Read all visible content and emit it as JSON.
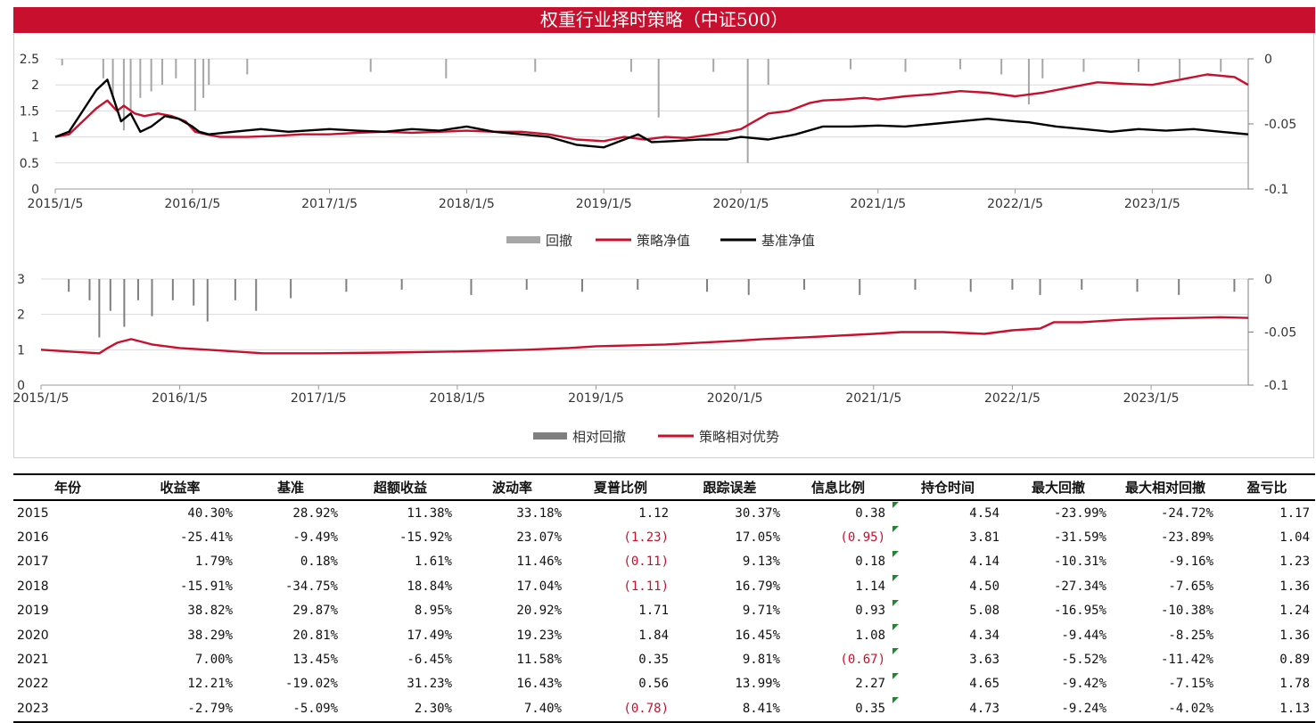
{
  "title": "权重行业择时策略（中证500）",
  "colors": {
    "strategy": "#c8102e",
    "benchmark": "#000000",
    "drawdown": "#a6a6a6",
    "relative_drawdown": "#7f7f7f",
    "title_bg": "#c8102e"
  },
  "chart_data": [
    {
      "type": "line",
      "x_ticks": [
        "2015/1/5",
        "2016/1/5",
        "2017/1/5",
        "2018/1/5",
        "2019/1/5",
        "2020/1/5",
        "2021/1/5",
        "2022/1/5",
        "2023/1/5"
      ],
      "y_left": {
        "min": 0,
        "max": 2.5,
        "ticks": [
          "0",
          "0.5",
          "1",
          "1.5",
          "2",
          "2.5"
        ]
      },
      "y_right": {
        "min": -0.1,
        "max": 0,
        "ticks": [
          "0",
          "-0.05",
          "-0.1"
        ]
      },
      "grid": true,
      "legend_position": "bottom",
      "series": [
        {
          "name": "回撤",
          "kind": "bar-down",
          "axis": "right",
          "x": [
            2015.05,
            2015.35,
            2015.42,
            2015.5,
            2015.55,
            2015.62,
            2015.7,
            2015.78,
            2015.88,
            2016.02,
            2016.08,
            2016.12,
            2016.4,
            2017.3,
            2017.85,
            2018.5,
            2019.2,
            2019.4,
            2019.8,
            2020.05,
            2020.2,
            2020.8,
            2021.2,
            2021.6,
            2021.9,
            2022.1,
            2022.2,
            2022.5,
            2022.9,
            2023.2,
            2023.5
          ],
          "values": [
            -0.005,
            -0.015,
            -0.03,
            -0.055,
            -0.04,
            -0.03,
            -0.025,
            -0.02,
            -0.015,
            -0.04,
            -0.03,
            -0.02,
            -0.012,
            -0.01,
            -0.015,
            -0.01,
            -0.01,
            -0.045,
            -0.01,
            -0.08,
            -0.02,
            -0.008,
            -0.01,
            -0.008,
            -0.012,
            -0.035,
            -0.015,
            -0.01,
            -0.01,
            -0.015,
            -0.01
          ]
        },
        {
          "name": "策略净值",
          "axis": "left",
          "x": [
            2015.0,
            2015.1,
            2015.2,
            2015.3,
            2015.38,
            2015.45,
            2015.5,
            2015.58,
            2015.65,
            2015.75,
            2015.85,
            2015.95,
            2016.02,
            2016.1,
            2016.2,
            2016.4,
            2016.6,
            2016.8,
            2017.0,
            2017.2,
            2017.4,
            2017.6,
            2017.8,
            2018.0,
            2018.2,
            2018.4,
            2018.6,
            2018.8,
            2019.0,
            2019.15,
            2019.3,
            2019.45,
            2019.6,
            2019.8,
            2020.0,
            2020.1,
            2020.2,
            2020.35,
            2020.5,
            2020.6,
            2020.75,
            2020.9,
            2021.0,
            2021.2,
            2021.4,
            2021.6,
            2021.8,
            2022.0,
            2022.2,
            2022.4,
            2022.6,
            2022.8,
            2023.0,
            2023.2,
            2023.4,
            2023.6,
            2023.7
          ],
          "values": [
            1.0,
            1.05,
            1.3,
            1.55,
            1.7,
            1.5,
            1.6,
            1.45,
            1.4,
            1.45,
            1.4,
            1.3,
            1.1,
            1.05,
            1.0,
            1.0,
            1.02,
            1.05,
            1.05,
            1.08,
            1.1,
            1.08,
            1.1,
            1.12,
            1.1,
            1.1,
            1.05,
            0.95,
            0.92,
            1.0,
            0.95,
            1.0,
            0.98,
            1.05,
            1.15,
            1.3,
            1.45,
            1.5,
            1.65,
            1.7,
            1.72,
            1.75,
            1.72,
            1.78,
            1.82,
            1.88,
            1.85,
            1.78,
            1.85,
            1.95,
            2.05,
            2.02,
            2.0,
            2.1,
            2.2,
            2.15,
            2.0
          ]
        },
        {
          "name": "基准净值",
          "axis": "left",
          "x": [
            2015.0,
            2015.1,
            2015.2,
            2015.3,
            2015.38,
            2015.43,
            2015.48,
            2015.55,
            2015.62,
            2015.7,
            2015.8,
            2015.9,
            2016.0,
            2016.05,
            2016.12,
            2016.3,
            2016.5,
            2016.7,
            2017.0,
            2017.2,
            2017.4,
            2017.6,
            2017.8,
            2018.0,
            2018.2,
            2018.4,
            2018.6,
            2018.8,
            2019.0,
            2019.15,
            2019.25,
            2019.35,
            2019.5,
            2019.7,
            2019.9,
            2020.0,
            2020.2,
            2020.4,
            2020.6,
            2020.8,
            2021.0,
            2021.2,
            2021.4,
            2021.6,
            2021.8,
            2022.0,
            2022.1,
            2022.3,
            2022.5,
            2022.7,
            2022.9,
            2023.1,
            2023.3,
            2023.5,
            2023.7
          ],
          "values": [
            1.0,
            1.1,
            1.5,
            1.9,
            2.1,
            1.7,
            1.3,
            1.45,
            1.1,
            1.2,
            1.4,
            1.35,
            1.2,
            1.1,
            1.05,
            1.1,
            1.15,
            1.1,
            1.15,
            1.12,
            1.1,
            1.15,
            1.12,
            1.2,
            1.1,
            1.05,
            1.0,
            0.85,
            0.8,
            0.95,
            1.05,
            0.9,
            0.92,
            0.95,
            0.95,
            1.0,
            0.95,
            1.05,
            1.2,
            1.2,
            1.22,
            1.2,
            1.25,
            1.3,
            1.35,
            1.3,
            1.28,
            1.2,
            1.15,
            1.1,
            1.15,
            1.12,
            1.15,
            1.1,
            1.05
          ]
        }
      ]
    },
    {
      "type": "line",
      "x_ticks": [
        "2015/1/5",
        "2016/1/5",
        "2017/1/5",
        "2018/1/5",
        "2019/1/5",
        "2020/1/5",
        "2021/1/5",
        "2022/1/5",
        "2023/1/5"
      ],
      "y_left": {
        "min": 0,
        "max": 3,
        "ticks": [
          "0",
          "1",
          "2",
          "3"
        ]
      },
      "y_right": {
        "min": -0.1,
        "max": 0,
        "ticks": [
          "0",
          "-0.05",
          "-0.1"
        ]
      },
      "grid": true,
      "legend_position": "bottom",
      "series": [
        {
          "name": "相对回撤",
          "kind": "bar-down",
          "axis": "right",
          "x": [
            2015.2,
            2015.35,
            2015.42,
            2015.5,
            2015.6,
            2015.7,
            2015.8,
            2015.95,
            2016.1,
            2016.2,
            2016.4,
            2016.55,
            2016.8,
            2017.2,
            2017.6,
            2018.1,
            2018.5,
            2018.9,
            2019.3,
            2019.8,
            2020.1,
            2020.5,
            2020.9,
            2021.3,
            2021.7,
            2022.0,
            2022.2,
            2022.5,
            2022.9,
            2023.2,
            2023.6
          ],
          "values": [
            -0.012,
            -0.02,
            -0.055,
            -0.03,
            -0.045,
            -0.02,
            -0.035,
            -0.02,
            -0.025,
            -0.04,
            -0.02,
            -0.03,
            -0.018,
            -0.012,
            -0.01,
            -0.015,
            -0.01,
            -0.012,
            -0.01,
            -0.012,
            -0.015,
            -0.01,
            -0.015,
            -0.01,
            -0.012,
            -0.01,
            -0.015,
            -0.01,
            -0.012,
            -0.015,
            -0.012
          ]
        },
        {
          "name": "策略相对优势",
          "axis": "left",
          "x": [
            2015.0,
            2015.2,
            2015.42,
            2015.48,
            2015.55,
            2015.65,
            2015.8,
            2016.0,
            2016.2,
            2016.4,
            2016.6,
            2017.0,
            2017.5,
            2018.0,
            2018.5,
            2018.8,
            2019.0,
            2019.5,
            2020.0,
            2020.2,
            2020.5,
            2021.0,
            2021.2,
            2021.5,
            2021.8,
            2022.0,
            2022.2,
            2022.3,
            2022.5,
            2022.8,
            2023.0,
            2023.3,
            2023.5,
            2023.7
          ],
          "values": [
            1.0,
            0.95,
            0.9,
            1.05,
            1.2,
            1.3,
            1.15,
            1.05,
            1.0,
            0.95,
            0.9,
            0.9,
            0.92,
            0.95,
            1.0,
            1.05,
            1.1,
            1.15,
            1.25,
            1.3,
            1.35,
            1.45,
            1.5,
            1.5,
            1.45,
            1.55,
            1.6,
            1.78,
            1.78,
            1.85,
            1.88,
            1.9,
            1.92,
            1.9
          ]
        }
      ]
    }
  ],
  "table": {
    "headers": [
      "年份",
      "收益率",
      "基准",
      "超额收益",
      "波动率",
      "夏普比例",
      "跟踪误差",
      "信息比例",
      "持仓时间",
      "最大回撤",
      "最大相对回撤",
      "盈亏比"
    ],
    "rows": [
      [
        "2015",
        "40.30%",
        "28.92%",
        "11.38%",
        "33.18%",
        "1.12",
        "30.37%",
        "0.38",
        "4.54",
        "-23.99%",
        "-24.72%",
        "1.17"
      ],
      [
        "2016",
        "-25.41%",
        "-9.49%",
        "-15.92%",
        "23.07%",
        "(1.23)",
        "17.05%",
        "(0.95)",
        "3.81",
        "-31.59%",
        "-23.89%",
        "1.04"
      ],
      [
        "2017",
        "1.79%",
        "0.18%",
        "1.61%",
        "11.46%",
        "(0.11)",
        "9.13%",
        "0.18",
        "4.14",
        "-10.31%",
        "-9.16%",
        "1.23"
      ],
      [
        "2018",
        "-15.91%",
        "-34.75%",
        "18.84%",
        "17.04%",
        "(1.11)",
        "16.79%",
        "1.14",
        "4.50",
        "-27.34%",
        "-7.65%",
        "1.36"
      ],
      [
        "2019",
        "38.82%",
        "29.87%",
        "8.95%",
        "20.92%",
        "1.71",
        "9.71%",
        "0.93",
        "5.08",
        "-16.95%",
        "-10.38%",
        "1.24"
      ],
      [
        "2020",
        "38.29%",
        "20.81%",
        "17.49%",
        "19.23%",
        "1.84",
        "16.45%",
        "1.08",
        "4.34",
        "-9.44%",
        "-8.25%",
        "1.36"
      ],
      [
        "2021",
        "7.00%",
        "13.45%",
        "-6.45%",
        "11.58%",
        "0.35",
        "9.81%",
        "(0.67)",
        "3.63",
        "-5.52%",
        "-11.42%",
        "0.89"
      ],
      [
        "2022",
        "12.21%",
        "-19.02%",
        "31.23%",
        "16.43%",
        "0.56",
        "13.99%",
        "2.27",
        "4.65",
        "-9.42%",
        "-7.15%",
        "1.78"
      ],
      [
        "2023",
        "-2.79%",
        "-5.09%",
        "2.30%",
        "7.40%",
        "(0.78)",
        "8.41%",
        "0.35",
        "4.73",
        "-9.24%",
        "-4.02%",
        "1.13"
      ]
    ]
  }
}
